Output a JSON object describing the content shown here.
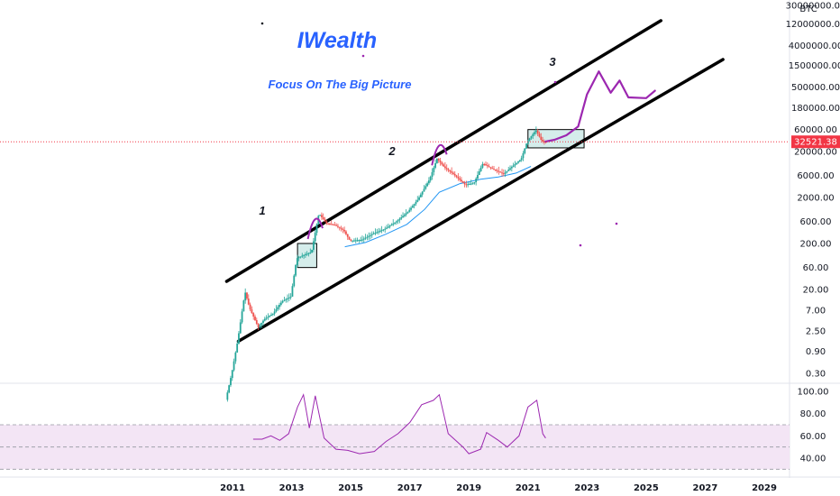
{
  "chart_data": {
    "type": "candlestick",
    "title": "IWealth",
    "subtitle": "Focus On The Big Picture",
    "currency_label": "BTC",
    "y_scale": "log",
    "last_price": "32521.38",
    "price_axis_ticks": [
      "30000000.00",
      "12000000.00",
      "4000000.00",
      "1500000.00",
      "500000.00",
      "180000.00",
      "60000.00",
      "20000.00",
      "6000.00",
      "2000.00",
      "600.00",
      "200.00",
      "60.00",
      "20.00",
      "7.00",
      "2.50",
      "0.90",
      "0.30"
    ],
    "time_axis_ticks": [
      "2011",
      "2013",
      "2015",
      "2017",
      "2019",
      "2021",
      "2023",
      "2025",
      "2027",
      "2029"
    ],
    "rsi_axis_ticks": [
      "100.00",
      "80.00",
      "60.00",
      "40.00"
    ],
    "wave_labels": [
      "1",
      "2",
      "3"
    ],
    "price_series": [
      {
        "t": 2010.8,
        "v": 0.08
      },
      {
        "t": 2011.0,
        "v": 0.3
      },
      {
        "t": 2011.2,
        "v": 1.5
      },
      {
        "t": 2011.45,
        "v": 18
      },
      {
        "t": 2011.6,
        "v": 8
      },
      {
        "t": 2011.9,
        "v": 3
      },
      {
        "t": 2012.1,
        "v": 4.5
      },
      {
        "t": 2012.4,
        "v": 6
      },
      {
        "t": 2012.7,
        "v": 11
      },
      {
        "t": 2013.0,
        "v": 14
      },
      {
        "t": 2013.2,
        "v": 95
      },
      {
        "t": 2013.4,
        "v": 110
      },
      {
        "t": 2013.7,
        "v": 130
      },
      {
        "t": 2013.95,
        "v": 900
      },
      {
        "t": 2014.2,
        "v": 550
      },
      {
        "t": 2014.5,
        "v": 500
      },
      {
        "t": 2014.8,
        "v": 380
      },
      {
        "t": 2015.0,
        "v": 230
      },
      {
        "t": 2015.4,
        "v": 240
      },
      {
        "t": 2015.8,
        "v": 330
      },
      {
        "t": 2016.2,
        "v": 420
      },
      {
        "t": 2016.6,
        "v": 620
      },
      {
        "t": 2016.95,
        "v": 960
      },
      {
        "t": 2017.3,
        "v": 1800
      },
      {
        "t": 2017.7,
        "v": 5000
      },
      {
        "t": 2017.95,
        "v": 14000
      },
      {
        "t": 2018.2,
        "v": 9000
      },
      {
        "t": 2018.5,
        "v": 6500
      },
      {
        "t": 2018.9,
        "v": 3800
      },
      {
        "t": 2019.2,
        "v": 4100
      },
      {
        "t": 2019.5,
        "v": 11000
      },
      {
        "t": 2019.8,
        "v": 8500
      },
      {
        "t": 2020.2,
        "v": 6500
      },
      {
        "t": 2020.5,
        "v": 9500
      },
      {
        "t": 2020.8,
        "v": 13800
      },
      {
        "t": 2021.0,
        "v": 33000
      },
      {
        "t": 2021.3,
        "v": 58000
      },
      {
        "t": 2021.5,
        "v": 33000
      },
      {
        "t": 2021.6,
        "v": 32521.38
      }
    ],
    "moving_average": [
      {
        "t": 2014.8,
        "v": 170
      },
      {
        "t": 2015.5,
        "v": 210
      },
      {
        "t": 2016.2,
        "v": 320
      },
      {
        "t": 2016.9,
        "v": 520
      },
      {
        "t": 2017.5,
        "v": 1100
      },
      {
        "t": 2018.0,
        "v": 2600
      },
      {
        "t": 2018.7,
        "v": 4000
      },
      {
        "t": 2019.4,
        "v": 5000
      },
      {
        "t": 2020.0,
        "v": 5600
      },
      {
        "t": 2020.6,
        "v": 6800
      },
      {
        "t": 2021.1,
        "v": 9500
      }
    ],
    "projection_path": [
      {
        "t": 2021.6,
        "v": 33000
      },
      {
        "t": 2021.9,
        "v": 36000
      },
      {
        "t": 2022.3,
        "v": 45000
      },
      {
        "t": 2022.7,
        "v": 70000
      },
      {
        "t": 2023.0,
        "v": 350000
      },
      {
        "t": 2023.4,
        "v": 1100000
      },
      {
        "t": 2023.8,
        "v": 380000
      },
      {
        "t": 2024.1,
        "v": 700000
      },
      {
        "t": 2024.4,
        "v": 300000
      },
      {
        "t": 2025.0,
        "v": 290000
      },
      {
        "t": 2025.3,
        "v": 420000
      }
    ],
    "channel_upper": [
      {
        "t": 2010.8,
        "v": 30
      },
      {
        "t": 2025.5,
        "v": 14000000
      }
    ],
    "channel_lower": [
      {
        "t": 2011.2,
        "v": 1.5
      },
      {
        "t": 2027.6,
        "v": 2000000
      }
    ],
    "boxes": [
      {
        "t0": 2013.2,
        "t1": 2013.85,
        "v0": 60,
        "v1": 200
      },
      {
        "t0": 2021.0,
        "t1": 2022.9,
        "v0": 24000,
        "v1": 60000
      }
    ],
    "rsi_series": [
      {
        "t": 2011.7,
        "v": 57
      },
      {
        "t": 2012.0,
        "v": 57
      },
      {
        "t": 2012.3,
        "v": 60
      },
      {
        "t": 2012.6,
        "v": 56
      },
      {
        "t": 2012.9,
        "v": 62
      },
      {
        "t": 2013.2,
        "v": 86
      },
      {
        "t": 2013.4,
        "v": 97
      },
      {
        "t": 2013.6,
        "v": 67
      },
      {
        "t": 2013.8,
        "v": 96
      },
      {
        "t": 2014.1,
        "v": 58
      },
      {
        "t": 2014.5,
        "v": 48
      },
      {
        "t": 2014.9,
        "v": 47
      },
      {
        "t": 2015.3,
        "v": 44
      },
      {
        "t": 2015.8,
        "v": 46
      },
      {
        "t": 2016.2,
        "v": 55
      },
      {
        "t": 2016.6,
        "v": 62
      },
      {
        "t": 2017.0,
        "v": 72
      },
      {
        "t": 2017.4,
        "v": 88
      },
      {
        "t": 2017.8,
        "v": 92
      },
      {
        "t": 2018.0,
        "v": 97
      },
      {
        "t": 2018.3,
        "v": 62
      },
      {
        "t": 2018.8,
        "v": 50
      },
      {
        "t": 2019.0,
        "v": 44
      },
      {
        "t": 2019.4,
        "v": 48
      },
      {
        "t": 2019.6,
        "v": 63
      },
      {
        "t": 2020.0,
        "v": 56
      },
      {
        "t": 2020.3,
        "v": 50
      },
      {
        "t": 2020.7,
        "v": 60
      },
      {
        "t": 2021.0,
        "v": 86
      },
      {
        "t": 2021.3,
        "v": 92
      },
      {
        "t": 2021.5,
        "v": 62
      },
      {
        "t": 2021.6,
        "v": 58
      }
    ],
    "rsi_band": [
      30,
      70
    ],
    "colors": {
      "up": "#26a69a",
      "down": "#ef5350",
      "channel": "#000000",
      "projection": "#9c27b0",
      "moving_average": "#2196f3",
      "rsi": "#9c27b0",
      "rsi_band_fill": "#f3e5f5",
      "box_fill": "#b2dfdb",
      "last_price_label": "#f23645",
      "title": "#2962ff"
    }
  }
}
